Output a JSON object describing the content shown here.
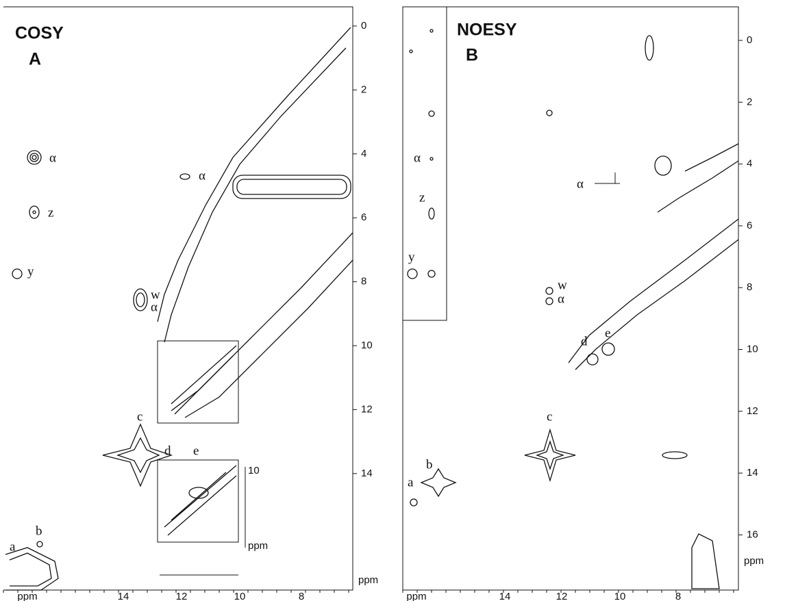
{
  "panels": [
    {
      "title": "COSY",
      "letter": "A",
      "y_ticks": [
        "0",
        "2",
        "4",
        "6",
        "8",
        "10",
        "12",
        "14"
      ],
      "y_unit": "ppm",
      "x_unit": "ppm",
      "x_ticks": [
        "14",
        "12",
        "10",
        "8"
      ],
      "peak_labels": [
        "α",
        "z",
        "y",
        "w",
        "α",
        "α",
        "c",
        "b",
        "a"
      ],
      "inset": {
        "labels": [
          "d",
          "e"
        ],
        "tick": "10",
        "unit": "ppm"
      }
    },
    {
      "title": "NOESY",
      "letter": "B",
      "y_ticks": [
        "0",
        "2",
        "4",
        "6",
        "8",
        "10",
        "12",
        "14",
        "16"
      ],
      "y_unit": "ppm",
      "x_unit": "ppm",
      "x_ticks": [
        "14",
        "12",
        "10",
        "8"
      ],
      "peak_labels": [
        "α",
        "z",
        "y",
        "w",
        "α",
        "α",
        "c",
        "b",
        "a",
        "d",
        "e"
      ]
    }
  ]
}
